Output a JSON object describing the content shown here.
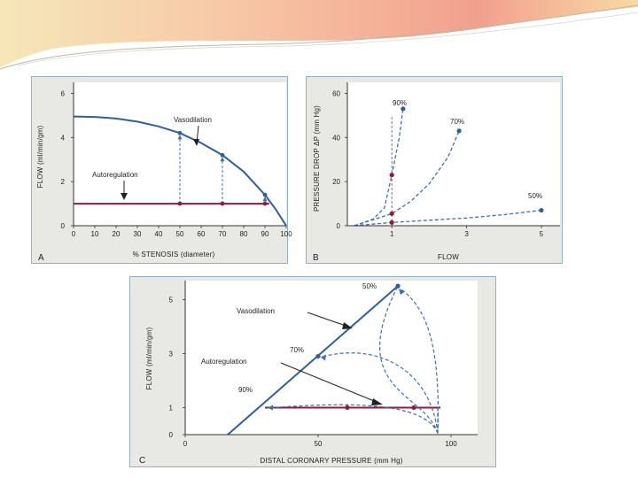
{
  "colors": {
    "curve_blue": "#2f5f9a",
    "dash_blue": "#3d6fae",
    "autoreg_red": "#8c1d3c",
    "panel_bg": "#e8e8e5",
    "panel_border": "#8fb0c8",
    "header_coral": "#f3a38e",
    "header_yellow": "#f7dca0"
  },
  "chart_data": [
    {
      "panel_label": "A",
      "type": "line",
      "title": "",
      "xlabel": "% STENOSIS (diameter)",
      "ylabel": "FLOW (ml/min/gm)",
      "xlim": [
        0,
        100
      ],
      "ylim": [
        0,
        6.5
      ],
      "xticks": [
        "0",
        "10",
        "20",
        "30",
        "40",
        "50",
        "60",
        "70",
        "80",
        "90",
        "100"
      ],
      "yticks": [
        "0",
        "2",
        "4",
        "6"
      ],
      "series": [
        {
          "name": "Vasodilation",
          "x": [
            0,
            10,
            20,
            30,
            40,
            50,
            60,
            70,
            80,
            90,
            95,
            100
          ],
          "y": [
            4.95,
            4.93,
            4.86,
            4.72,
            4.5,
            4.2,
            3.75,
            3.2,
            2.45,
            1.4,
            0.75,
            0
          ]
        },
        {
          "name": "Autoregulation",
          "x": [
            0,
            100
          ],
          "y": [
            1,
            1
          ]
        }
      ],
      "points": {
        "x": [
          50,
          70,
          90
        ],
        "vasodilation_y": [
          4.2,
          3.2,
          1.4
        ],
        "autoregulation_y": [
          1,
          1,
          1
        ]
      },
      "annotations": {
        "vasodilation": "Vasodilation",
        "autoregulation": "Autoregulation"
      }
    },
    {
      "panel_label": "B",
      "type": "line",
      "title": "",
      "xlabel": "FLOW",
      "ylabel": "PRESSURE DROP ΔP (mm Hg)",
      "xlim": [
        0,
        5.5
      ],
      "ylim": [
        0,
        65
      ],
      "xticks": [
        "1",
        "3",
        "5"
      ],
      "yticks": [
        "0",
        "20",
        "40",
        "60"
      ],
      "series": [
        {
          "name": "90%",
          "x": [
            0,
            0.5,
            0.8,
            1.0,
            1.2,
            1.3
          ],
          "y": [
            0,
            3,
            8,
            23,
            40,
            53
          ]
        },
        {
          "name": "70%",
          "x": [
            0,
            1.0,
            1.5,
            2.0,
            2.5,
            2.8
          ],
          "y": [
            0,
            5.5,
            11,
            19,
            31,
            43
          ]
        },
        {
          "name": "50%",
          "x": [
            0,
            1.0,
            2.0,
            3.0,
            4.0,
            5.0
          ],
          "y": [
            0,
            1.5,
            2.5,
            3.5,
            5,
            7
          ]
        }
      ],
      "flow_line_x": 1,
      "points_at_flow_1": {
        "90%": 23,
        "70%": 5.5,
        "50%": 1.5
      },
      "labels": [
        "90%",
        "70%",
        "50%"
      ]
    },
    {
      "panel_label": "C",
      "type": "line",
      "title": "",
      "xlabel": "DISTAL CORONARY PRESSURE (mm Hg)",
      "ylabel": "FLOW (ml/min/gm)",
      "xlim": [
        0,
        110
      ],
      "ylim": [
        0,
        5.7
      ],
      "xticks": [
        "0",
        "50",
        "100"
      ],
      "yticks": [
        "0",
        "1",
        "3",
        "5"
      ],
      "series": [
        {
          "name": "Vasodilation",
          "x": [
            16,
            80
          ],
          "y": [
            0,
            5.5
          ]
        },
        {
          "name": "Autoregulation",
          "x": [
            30,
            96
          ],
          "y": [
            1,
            1
          ]
        }
      ],
      "points": {
        "vasodilation": [
          {
            "x": 50,
            "y": 2.9,
            "label": "70%"
          },
          {
            "x": 80,
            "y": 5.5,
            "label": "50%"
          }
        ],
        "autoregulation": [
          {
            "x": 61,
            "y": 1
          },
          {
            "x": 86,
            "y": 1
          }
        ]
      },
      "annotations": {
        "vasodilation": "Vasodilation",
        "autoregulation": "Autoregulation"
      },
      "labels": [
        "50%",
        "70%",
        "90%"
      ]
    }
  ]
}
